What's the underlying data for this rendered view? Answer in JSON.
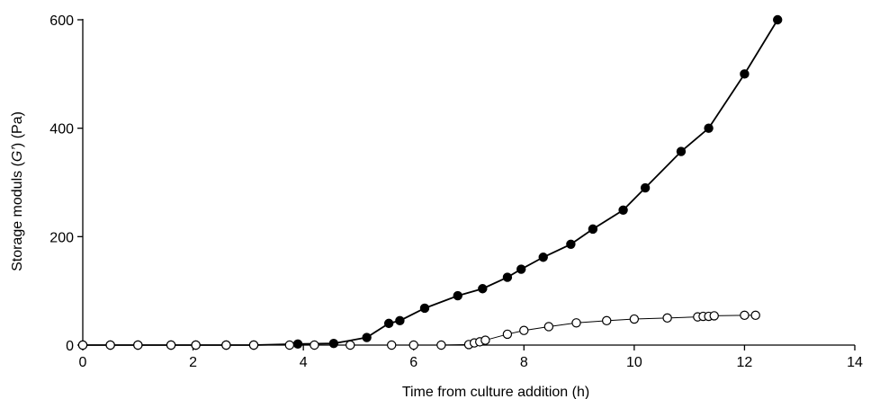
{
  "chart_data": {
    "type": "line",
    "title": "",
    "xlabel": "Time from culture addition (h)",
    "ylabel_parts": {
      "pre": "Storage moduls (",
      "sym": "G’",
      "post": ") (Pa)"
    },
    "xlim": [
      0,
      14
    ],
    "ylim": [
      0,
      600
    ],
    "xticks": [
      0,
      2,
      4,
      6,
      8,
      10,
      12,
      14
    ],
    "yticks": [
      0,
      200,
      400,
      600
    ],
    "grid": false,
    "legend": "none",
    "series": [
      {
        "marker": "filled-circle",
        "color": "#000000",
        "x": [
          0,
          0.5,
          1.0,
          1.6,
          2.05,
          2.6,
          3.1,
          3.9,
          4.55,
          5.15,
          5.55,
          5.75,
          6.2,
          6.8,
          7.25,
          7.7,
          7.95,
          8.35,
          8.85,
          9.25,
          9.8,
          10.2,
          10.85,
          11.35,
          12.0,
          12.6
        ],
        "y": [
          0,
          0,
          0,
          0,
          0,
          0,
          0,
          2,
          3,
          14,
          40,
          45,
          68,
          91,
          104,
          125,
          140,
          162,
          186,
          214,
          249,
          290,
          357,
          400,
          500,
          600
        ]
      },
      {
        "marker": "open-circle",
        "color": "#000000",
        "x": [
          0,
          0.5,
          1.0,
          1.6,
          2.05,
          2.6,
          3.1,
          3.75,
          4.2,
          4.85,
          5.6,
          6.0,
          6.5,
          7.0,
          7.1,
          7.2,
          7.3,
          7.7,
          8.0,
          8.45,
          8.95,
          9.5,
          10.0,
          10.6,
          11.15,
          11.25,
          11.35,
          11.45,
          12.0,
          12.2
        ],
        "y": [
          0,
          0,
          0,
          0,
          0,
          0,
          0,
          0,
          0,
          0,
          0,
          0,
          0,
          1,
          4,
          6,
          9,
          20,
          27,
          34,
          41,
          45,
          48,
          50,
          52,
          53,
          53,
          54,
          55,
          55
        ]
      }
    ]
  }
}
